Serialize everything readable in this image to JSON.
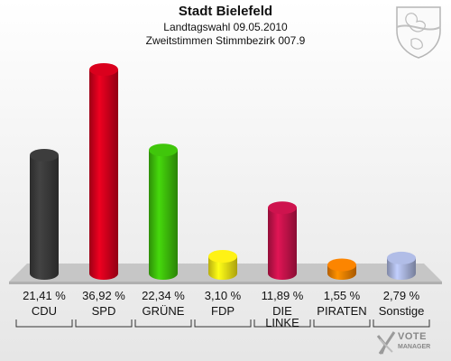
{
  "header": {
    "title": "Stadt Bielefeld",
    "subtitle1": "Landtagswahl 09.05.2010",
    "subtitle2": "Zweitstimmen Stimmbezirk 007.9"
  },
  "logo": {
    "line1": "VOTE",
    "line2": "MANAGER"
  },
  "chart_data": {
    "type": "bar",
    "title": "Stadt Bielefeld",
    "categories": [
      "CDU",
      "SPD",
      "GRÜNE",
      "FDP",
      "DIE LINKE",
      "PIRATEN",
      "Sonstige"
    ],
    "category_labels": [
      [
        "CDU"
      ],
      [
        "SPD"
      ],
      [
        "GRÜNE"
      ],
      [
        "FDP"
      ],
      [
        "DIE",
        "LINKE"
      ],
      [
        "PIRATEN"
      ],
      [
        "Sonstige"
      ]
    ],
    "values": [
      21.41,
      36.92,
      22.34,
      3.1,
      11.89,
      1.55,
      2.79
    ],
    "value_labels": [
      "21,41 %",
      "36,92 %",
      "22,34 %",
      "3,10 %",
      "11,89 %",
      "1,55 %",
      "2,79 %"
    ],
    "colors": [
      "#3a3a3a",
      "#d0001c",
      "#3dbd0a",
      "#f5e614",
      "#c4124a",
      "#f07f00",
      "#a9b4dc"
    ],
    "grid": false,
    "legend": "none"
  }
}
